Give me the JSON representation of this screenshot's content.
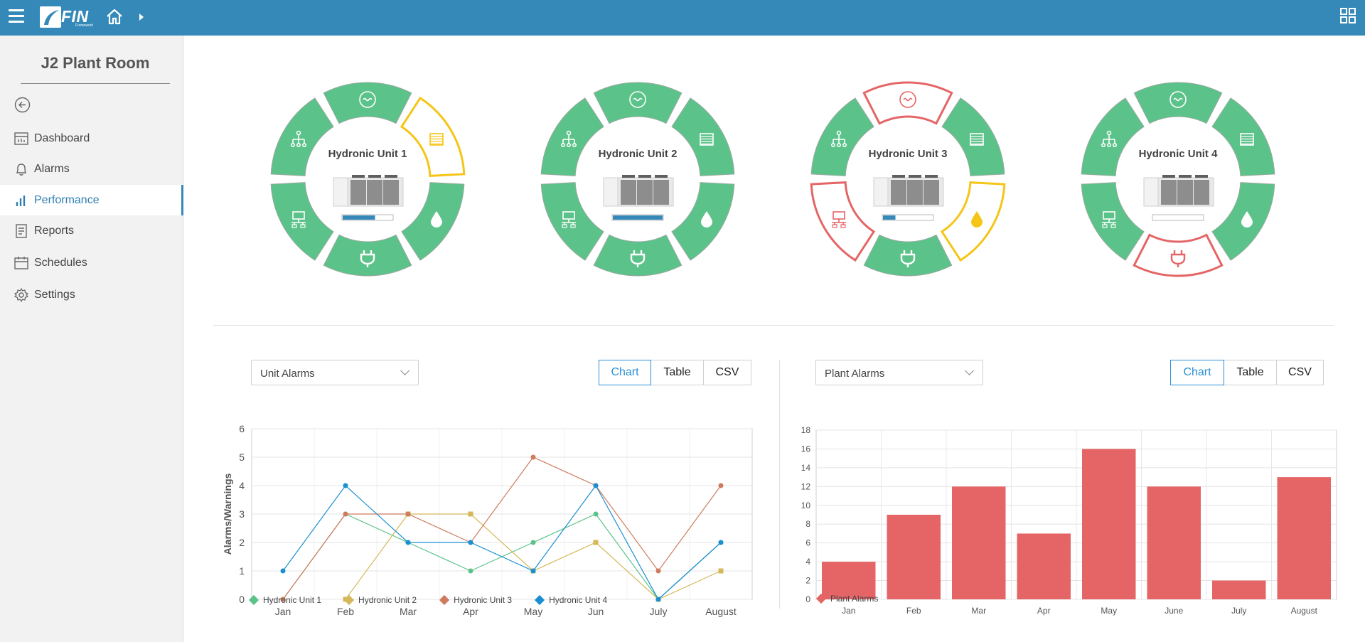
{
  "app": {
    "logo_text": "FIN",
    "logo_sub": "Framework"
  },
  "sidebar": {
    "title": "J2 Plant Room",
    "items": [
      {
        "label": "Dashboard",
        "icon": "dashboard-icon"
      },
      {
        "label": "Alarms",
        "icon": "bell-icon"
      },
      {
        "label": "Performance",
        "icon": "bar-chart-icon",
        "active": true
      },
      {
        "label": "Reports",
        "icon": "report-icon"
      },
      {
        "label": "Schedules",
        "icon": "calendar-icon"
      },
      {
        "label": "Settings",
        "icon": "gear-icon"
      }
    ]
  },
  "colors": {
    "ok": "#5bc389",
    "warning": "#f5c518",
    "alarm": "#e56566",
    "accent": "#3489b9"
  },
  "units": [
    {
      "name": "Hydronic Unit 1",
      "progress": 0.65,
      "segments": [
        "ok",
        "warning",
        "ok",
        "ok",
        "ok",
        "ok"
      ]
    },
    {
      "name": "Hydronic Unit 2",
      "progress": 1.0,
      "segments": [
        "ok",
        "ok",
        "ok",
        "ok",
        "ok",
        "ok"
      ]
    },
    {
      "name": "Hydronic Unit 3",
      "progress": 0.25,
      "segments": [
        "alarm",
        "ok",
        "warning",
        "ok",
        "alarm",
        "ok"
      ]
    },
    {
      "name": "Hydronic Unit 4",
      "progress": 0.0,
      "segments": [
        "ok",
        "ok",
        "ok",
        "alarm",
        "ok",
        "ok"
      ]
    }
  ],
  "left_panel": {
    "select_label": "Unit Alarms",
    "buttons": [
      "Chart",
      "Table",
      "CSV"
    ],
    "active_button": "Chart"
  },
  "right_panel": {
    "select_label": "Plant Alarms",
    "buttons": [
      "Chart",
      "Table",
      "CSV"
    ],
    "active_button": "Chart"
  },
  "chart_data": [
    {
      "type": "line",
      "ylabel": "Alarms/Warnings",
      "xlabel": "",
      "categories": [
        "Jan",
        "Feb",
        "Mar",
        "Apr",
        "May",
        "Jun",
        "July",
        "August"
      ],
      "ylim": [
        0,
        6
      ],
      "yticks": [
        "0",
        "1",
        "2",
        "3",
        "4",
        "5",
        "6"
      ],
      "grid": true,
      "legend_position": "bottom",
      "series": [
        {
          "name": "Hydronic Unit 1",
          "color": "#5bc389",
          "marker": "circle",
          "values": [
            0,
            3,
            2,
            1,
            2,
            3,
            0,
            2
          ]
        },
        {
          "name": "Hydronic Unit 2",
          "color": "#d4b85a",
          "marker": "square",
          "values": [
            null,
            0,
            3,
            3,
            1,
            2,
            0,
            1
          ]
        },
        {
          "name": "Hydronic Unit 3",
          "color": "#cf7b5e",
          "marker": "circle",
          "values": [
            0,
            3,
            3,
            2,
            5,
            4,
            1,
            4
          ]
        },
        {
          "name": "Hydronic Unit 4",
          "color": "#1b8fd1",
          "marker": "circle",
          "values": [
            1,
            4,
            2,
            2,
            1,
            4,
            0,
            2
          ]
        }
      ]
    },
    {
      "type": "bar",
      "xlabel": "",
      "ylabel": "",
      "categories": [
        "Jan",
        "Feb",
        "Mar",
        "Apr",
        "May",
        "June",
        "July",
        "August"
      ],
      "ylim": [
        0,
        18
      ],
      "yticks": [
        "0",
        "2",
        "4",
        "6",
        "8",
        "10",
        "12",
        "14",
        "16",
        "18"
      ],
      "grid": true,
      "legend_position": "bottom-left",
      "series": [
        {
          "name": "Plant Alarms",
          "color": "#e56566",
          "values": [
            4,
            9,
            12,
            7,
            16,
            12,
            2,
            13
          ]
        }
      ]
    }
  ]
}
